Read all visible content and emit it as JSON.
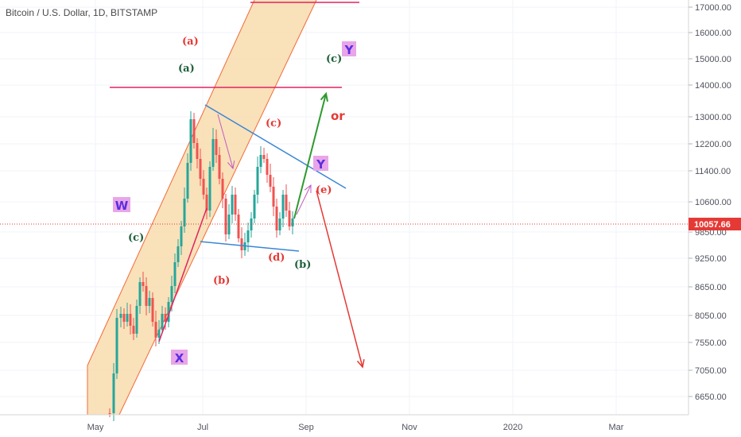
{
  "chart_data": {
    "type": "candlestick",
    "title": "Bitcoin / U.S. Dollar, 1D, BITSTAMP",
    "y_ticks": [
      "17000.00",
      "16000.00",
      "15000.00",
      "14000.00",
      "13000.00",
      "12200.00",
      "11400.00",
      "10600.00",
      "9850.00",
      "9250.00",
      "8650.00",
      "8050.00",
      "7550.00",
      "7050.00",
      "6650.00"
    ],
    "x_ticks": [
      "May",
      "Jul",
      "Sep",
      "Nov",
      "2020",
      "Mar"
    ],
    "last_price": "10057.66",
    "grid": true,
    "colors": {
      "up": "#26a69a",
      "down": "#ef5350",
      "channel_fill": "#f8dcae",
      "channel_line": "#f26b3a",
      "horizontal_line": "#e0245e",
      "triangle_line": "#3a86d6",
      "green_arrow": "#2e9a2e",
      "red_arrow": "#e53935",
      "purple_arrow": "#c45bc0",
      "wave_label_red": "#e53935",
      "wave_label_green": "#1f5f3a",
      "badge_bg": "#e8a6e8",
      "badge_text": "#5b2de0",
      "price_tag": "#e53935"
    },
    "annotations": {
      "a_red": "(a)",
      "a_green": "(a)",
      "c_green_top": "(c)",
      "c_red": "(c)",
      "c_green_left": "(c)",
      "b_red": "(b)",
      "d_red": "(d)",
      "b_green": "(b)",
      "e_red": "(e)",
      "or": "or",
      "W": "W",
      "X": "X",
      "Y_top": "Y",
      "Y_mid": "Y"
    }
  }
}
